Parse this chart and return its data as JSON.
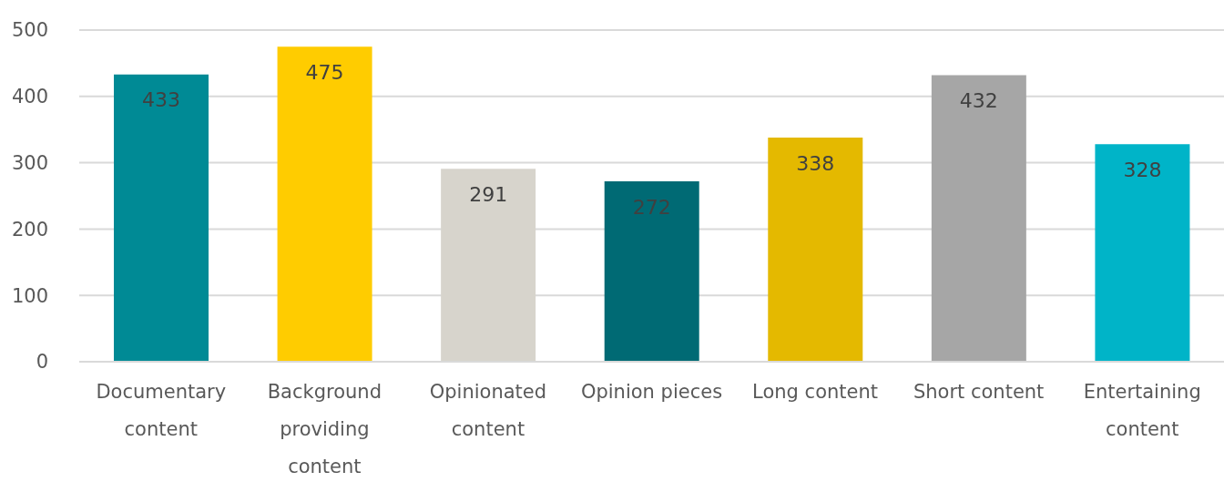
{
  "chart_data": {
    "type": "bar",
    "categories": [
      "Documentary content",
      "Background providing content",
      "Opinionated content",
      "Opinion pieces",
      "Long content",
      "Short content",
      "Entertaining content"
    ],
    "values": [
      433,
      475,
      291,
      272,
      338,
      432,
      328
    ],
    "colors": [
      "#008a95",
      "#ffcc00",
      "#d7d4cc",
      "#006a74",
      "#e4b900",
      "#a6a6a6",
      "#00b4c8"
    ],
    "ylim": [
      0,
      500
    ],
    "yticks": [
      0,
      100,
      200,
      300,
      400,
      500
    ],
    "grid": "y",
    "data_labels": true
  }
}
